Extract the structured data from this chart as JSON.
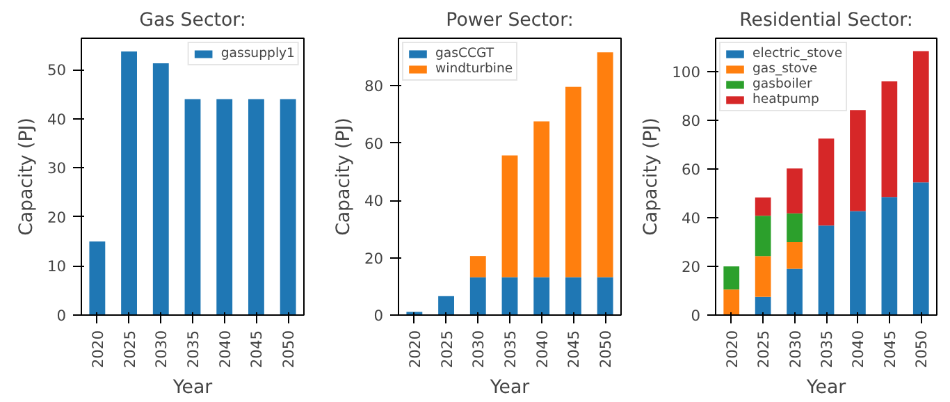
{
  "chart_data": [
    {
      "type": "bar",
      "title": "Gas Sector:",
      "xlabel": "Year",
      "ylabel": "Capacity (PJ)",
      "categories": [
        "2020",
        "2025",
        "2030",
        "2035",
        "2040",
        "2045",
        "2050"
      ],
      "series": [
        {
          "name": "gassupply1",
          "color": "#1f77b4",
          "values": [
            15,
            53.7,
            51.3,
            44,
            44,
            44,
            44
          ]
        }
      ],
      "ylim": [
        0,
        56.4
      ],
      "yticks": [
        0,
        10,
        20,
        30,
        40,
        50
      ],
      "legend": "top right",
      "grid": false
    },
    {
      "type": "bar",
      "stacked": true,
      "title": "Power Sector:",
      "xlabel": "Year",
      "ylabel": "Capacity (PJ)",
      "categories": [
        "2020",
        "2025",
        "2030",
        "2035",
        "2040",
        "2045",
        "2050"
      ],
      "series": [
        {
          "name": "gasCCGT",
          "color": "#1f77b4",
          "values": [
            1.1,
            6.6,
            13.2,
            13.2,
            13.2,
            13.2,
            13.2
          ]
        },
        {
          "name": "windturbine",
          "color": "#ff7f0e",
          "values": [
            0,
            0,
            7.4,
            42.5,
            54.4,
            66.5,
            78.5
          ]
        }
      ],
      "ylim": [
        0,
        96.6
      ],
      "yticks": [
        0,
        20,
        40,
        60,
        80
      ],
      "legend": "top left",
      "grid": false
    },
    {
      "type": "bar",
      "stacked": true,
      "title": "Residential Sector:",
      "xlabel": "Year",
      "ylabel": "Capacity (PJ)",
      "categories": [
        "2020",
        "2025",
        "2030",
        "2035",
        "2040",
        "2045",
        "2050"
      ],
      "series": [
        {
          "name": "electric_stove",
          "color": "#1f77b4",
          "values": [
            0,
            7.5,
            19,
            36.8,
            42.7,
            48.5,
            54.5
          ]
        },
        {
          "name": "gas_stove",
          "color": "#ff7f0e",
          "values": [
            10.5,
            16.7,
            11,
            0,
            0,
            0,
            0
          ]
        },
        {
          "name": "gasboiler",
          "color": "#2ca02c",
          "values": [
            9.5,
            16.6,
            11.8,
            0,
            0,
            0,
            0
          ]
        },
        {
          "name": "heatpump",
          "color": "#d62728",
          "values": [
            0,
            7.5,
            18.4,
            35.7,
            41.5,
            47.5,
            53.9
          ]
        }
      ],
      "ylim": [
        0,
        113.7
      ],
      "yticks": [
        0,
        20,
        40,
        60,
        80,
        100
      ],
      "legend": "top left",
      "grid": false
    }
  ]
}
